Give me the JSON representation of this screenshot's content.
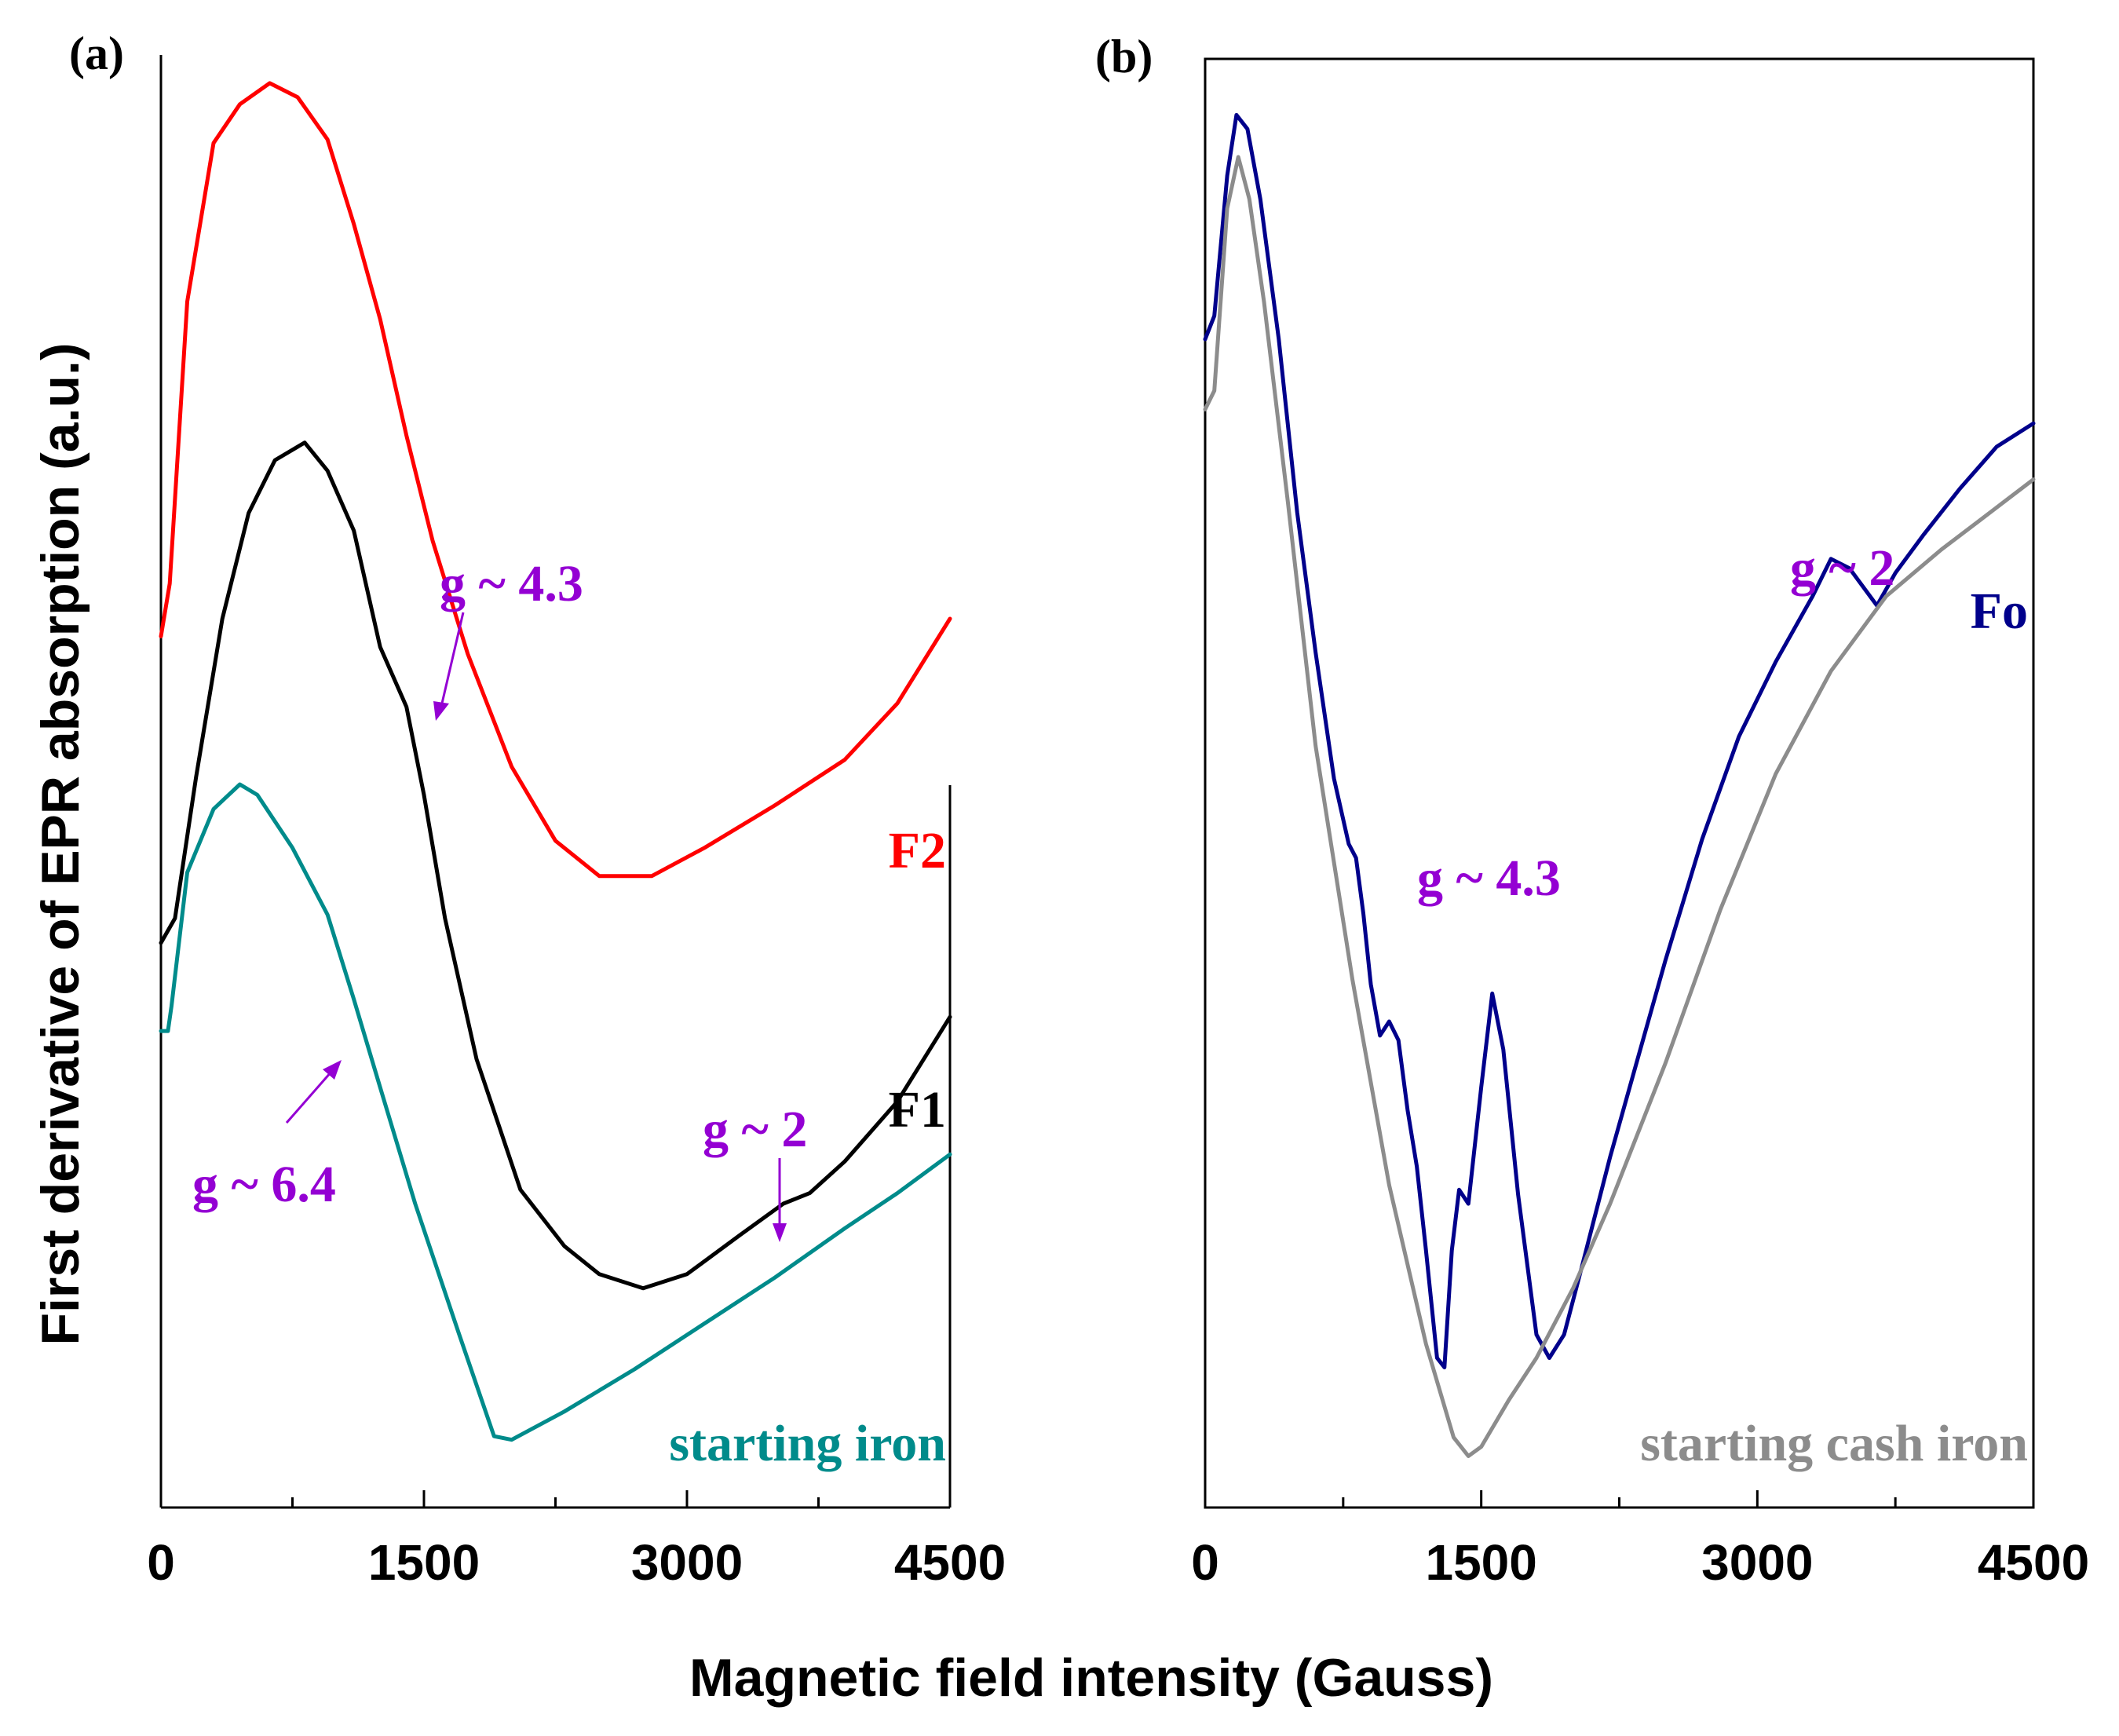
{
  "figure": {
    "xlabel": "Magnetic field intensity (Gauss)",
    "ylabel": "First derivative of EPR absorption (a.u.)",
    "colors": {
      "annotation": "#9400d3",
      "axis": "#000000"
    }
  },
  "chart_data": [
    {
      "type": "line",
      "panel_label": "(a)",
      "xlim": [
        0,
        4500
      ],
      "y_units": "arbitrary (offset curves, no y tick labels)",
      "x_ticks": [
        0,
        1500,
        3000,
        4500
      ],
      "x_tick_labels": [
        "0",
        "1500",
        "3000",
        "4500"
      ],
      "grid": false,
      "series": [
        {
          "name": "F2",
          "color": "#ff0000",
          "points": [
            [
              0,
              -6.5
            ],
            [
              50,
              -5
            ],
            [
              150,
              3
            ],
            [
              300,
              7.5
            ],
            [
              450,
              8.6
            ],
            [
              620,
              9.2
            ],
            [
              780,
              8.8
            ],
            [
              950,
              7.6
            ],
            [
              1100,
              5.2
            ],
            [
              1250,
              2.5
            ],
            [
              1400,
              -0.8
            ],
            [
              1550,
              -3.8
            ],
            [
              1750,
              -7
            ],
            [
              2000,
              -10.2
            ],
            [
              2250,
              -12.3
            ],
            [
              2500,
              -13.3
            ],
            [
              2800,
              -13.3
            ],
            [
              3100,
              -12.5
            ],
            [
              3500,
              -11.3
            ],
            [
              3900,
              -10
            ],
            [
              4200,
              -8.4
            ],
            [
              4500,
              -6
            ]
          ]
        },
        {
          "name": "F1",
          "color": "#000000",
          "points": [
            [
              0,
              -15.2
            ],
            [
              80,
              -14.5
            ],
            [
              200,
              -10.5
            ],
            [
              350,
              -6
            ],
            [
              500,
              -3
            ],
            [
              650,
              -1.5
            ],
            [
              820,
              -1
            ],
            [
              950,
              -1.8
            ],
            [
              1100,
              -3.5
            ],
            [
              1250,
              -6.8
            ],
            [
              1400,
              -8.5
            ],
            [
              1500,
              -11
            ],
            [
              1620,
              -14.5
            ],
            [
              1800,
              -18.5
            ],
            [
              2050,
              -22.2
            ],
            [
              2300,
              -23.8
            ],
            [
              2500,
              -24.6
            ],
            [
              2750,
              -25
            ],
            [
              3000,
              -24.6
            ],
            [
              3300,
              -23.5
            ],
            [
              3550,
              -22.6
            ],
            [
              3700,
              -22.3
            ],
            [
              3900,
              -21.4
            ],
            [
              4200,
              -19.7
            ],
            [
              4500,
              -17.3
            ]
          ]
        },
        {
          "name": "starting iron",
          "color": "#008b8b",
          "points": [
            [
              0,
              -17.7
            ],
            [
              40,
              -17.7
            ],
            [
              60,
              -17
            ],
            [
              150,
              -13.2
            ],
            [
              300,
              -11.4
            ],
            [
              450,
              -10.7
            ],
            [
              550,
              -11
            ],
            [
              750,
              -12.5
            ],
            [
              950,
              -14.4
            ],
            [
              1100,
              -16.8
            ],
            [
              1250,
              -19.3
            ],
            [
              1450,
              -22.6
            ],
            [
              1700,
              -26.3
            ],
            [
              1900,
              -29.2
            ],
            [
              2000,
              -29.3
            ],
            [
              2300,
              -28.5
            ],
            [
              2700,
              -27.3
            ],
            [
              3100,
              -26
            ],
            [
              3500,
              -24.7
            ],
            [
              3900,
              -23.3
            ],
            [
              4200,
              -22.3
            ],
            [
              4500,
              -21.2
            ]
          ]
        }
      ],
      "annotations": [
        {
          "text": "g ~ 4.3",
          "color": "#9400d3",
          "arrow": true
        },
        {
          "text": "g ~ 6.4",
          "color": "#9400d3",
          "arrow": true
        },
        {
          "text": "g ~ 2",
          "color": "#9400d3",
          "arrow": true
        }
      ]
    },
    {
      "type": "line",
      "panel_label": "(b)",
      "xlim": [
        0,
        4500
      ],
      "y_units": "arbitrary (offset curves, no y tick labels)",
      "x_ticks": [
        0,
        1500,
        3000,
        4500
      ],
      "x_tick_labels": [
        "0",
        "1500",
        "3000",
        "4500"
      ],
      "grid": false,
      "series": [
        {
          "name": "Fo",
          "color": "#00008b",
          "points": [
            [
              0,
              6
            ],
            [
              50,
              6.5
            ],
            [
              120,
              9.5
            ],
            [
              170,
              10.8
            ],
            [
              230,
              10.5
            ],
            [
              300,
              9
            ],
            [
              400,
              6
            ],
            [
              500,
              2.3
            ],
            [
              600,
              -0.7
            ],
            [
              700,
              -3.4
            ],
            [
              780,
              -4.8
            ],
            [
              820,
              -5.1
            ],
            [
              860,
              -6.3
            ],
            [
              900,
              -7.8
            ],
            [
              950,
              -8.9
            ],
            [
              1000,
              -8.6
            ],
            [
              1050,
              -9
            ],
            [
              1100,
              -10.5
            ],
            [
              1150,
              -11.7
            ],
            [
              1200,
              -13.5
            ],
            [
              1260,
              -15.8
            ],
            [
              1300,
              -16
            ],
            [
              1340,
              -13.5
            ],
            [
              1380,
              -12.2
            ],
            [
              1430,
              -12.5
            ],
            [
              1500,
              -10
            ],
            [
              1560,
              -8
            ],
            [
              1620,
              -9.2
            ],
            [
              1700,
              -12.3
            ],
            [
              1800,
              -15.3
            ],
            [
              1870,
              -15.8
            ],
            [
              1950,
              -15.3
            ],
            [
              2050,
              -13.8
            ],
            [
              2200,
              -11.5
            ],
            [
              2350,
              -9.4
            ],
            [
              2500,
              -7.3
            ],
            [
              2700,
              -4.7
            ],
            [
              2900,
              -2.5
            ],
            [
              3100,
              -0.9
            ],
            [
              3300,
              0.5
            ],
            [
              3400,
              1.3
            ],
            [
              3500,
              1.1
            ],
            [
              3650,
              0.3
            ],
            [
              3750,
              1
            ],
            [
              3900,
              1.8
            ],
            [
              4100,
              2.8
            ],
            [
              4300,
              3.7
            ],
            [
              4500,
              4.2
            ]
          ]
        },
        {
          "name": "starting cash iron",
          "color": "#8c8c8c",
          "points": [
            [
              0,
              4.5
            ],
            [
              50,
              4.9
            ],
            [
              120,
              8.8
            ],
            [
              180,
              9.9
            ],
            [
              240,
              9
            ],
            [
              320,
              6.8
            ],
            [
              450,
              2.5
            ],
            [
              600,
              -2.7
            ],
            [
              800,
              -7.7
            ],
            [
              1000,
              -12.1
            ],
            [
              1200,
              -15.5
            ],
            [
              1350,
              -17.5
            ],
            [
              1430,
              -17.9
            ],
            [
              1500,
              -17.7
            ],
            [
              1650,
              -16.7
            ],
            [
              1800,
              -15.8
            ],
            [
              2000,
              -14.3
            ],
            [
              2200,
              -12.5
            ],
            [
              2500,
              -9.5
            ],
            [
              2800,
              -6.2
            ],
            [
              3100,
              -3.3
            ],
            [
              3400,
              -1.1
            ],
            [
              3700,
              0.5
            ],
            [
              4000,
              1.5
            ],
            [
              4200,
              2.1
            ],
            [
              4500,
              3
            ]
          ]
        }
      ],
      "annotations": [
        {
          "text": "g ~ 4.3",
          "color": "#9400d3",
          "arrow": false
        },
        {
          "text": "g ~ 2",
          "color": "#9400d3",
          "arrow": false
        }
      ]
    }
  ]
}
